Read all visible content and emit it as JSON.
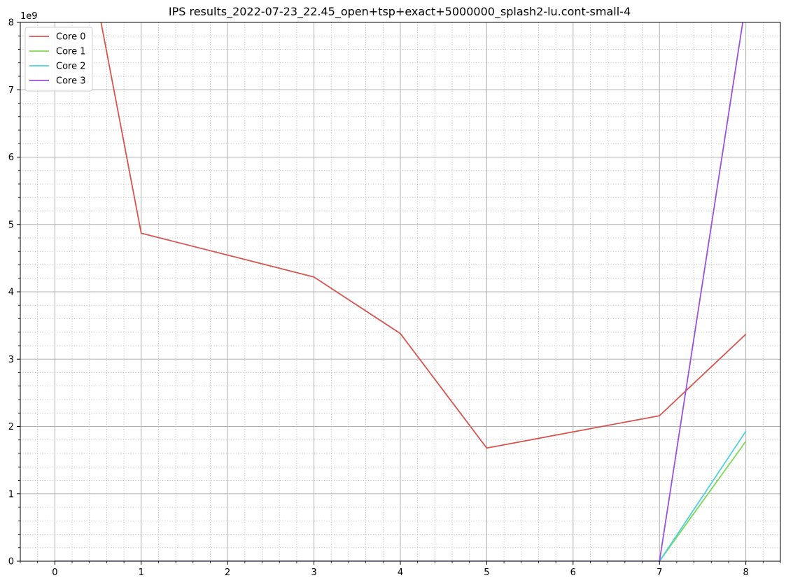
{
  "chart_data": {
    "type": "line",
    "title": "IPS results_2022-07-23_22.45_open+tsp+exact+5000000_splash2-lu.cont-small-4",
    "xlabel": "",
    "ylabel": "",
    "y_offset_label": "1e9",
    "xlim": [
      -0.4,
      8.4
    ],
    "ylim": [
      0,
      8
    ],
    "x_ticks": [
      0,
      1,
      2,
      3,
      4,
      5,
      6,
      7,
      8
    ],
    "y_ticks": [
      0,
      1,
      2,
      3,
      4,
      5,
      6,
      7,
      8
    ],
    "x_tick_labels": [
      "0",
      "1",
      "2",
      "3",
      "4",
      "5",
      "6",
      "7",
      "8"
    ],
    "y_tick_labels": [
      "0",
      "1",
      "2",
      "3",
      "4",
      "5",
      "6",
      "7",
      "8"
    ],
    "x_minor_step": 0.2,
    "y_minor_step": 0.2,
    "grid": true,
    "legend_position": "top-left",
    "x": [
      0,
      1,
      3,
      4,
      5,
      7,
      8
    ],
    "series": [
      {
        "name": "Core 0",
        "color": "#d9534f",
        "values": [
          11.6,
          4.87,
          4.22,
          3.38,
          1.68,
          2.16,
          3.37
        ]
      },
      {
        "name": "Core 1",
        "color": "#7ed957",
        "values": [
          0,
          0,
          0,
          0,
          0,
          0,
          1.78
        ]
      },
      {
        "name": "Core 2",
        "color": "#4fd2e0",
        "values": [
          0,
          0,
          0,
          0,
          0,
          0,
          1.93
        ]
      },
      {
        "name": "Core 3",
        "color": "#9b51d9",
        "values": [
          0,
          0,
          0,
          0,
          0,
          0,
          8.3
        ]
      }
    ]
  }
}
